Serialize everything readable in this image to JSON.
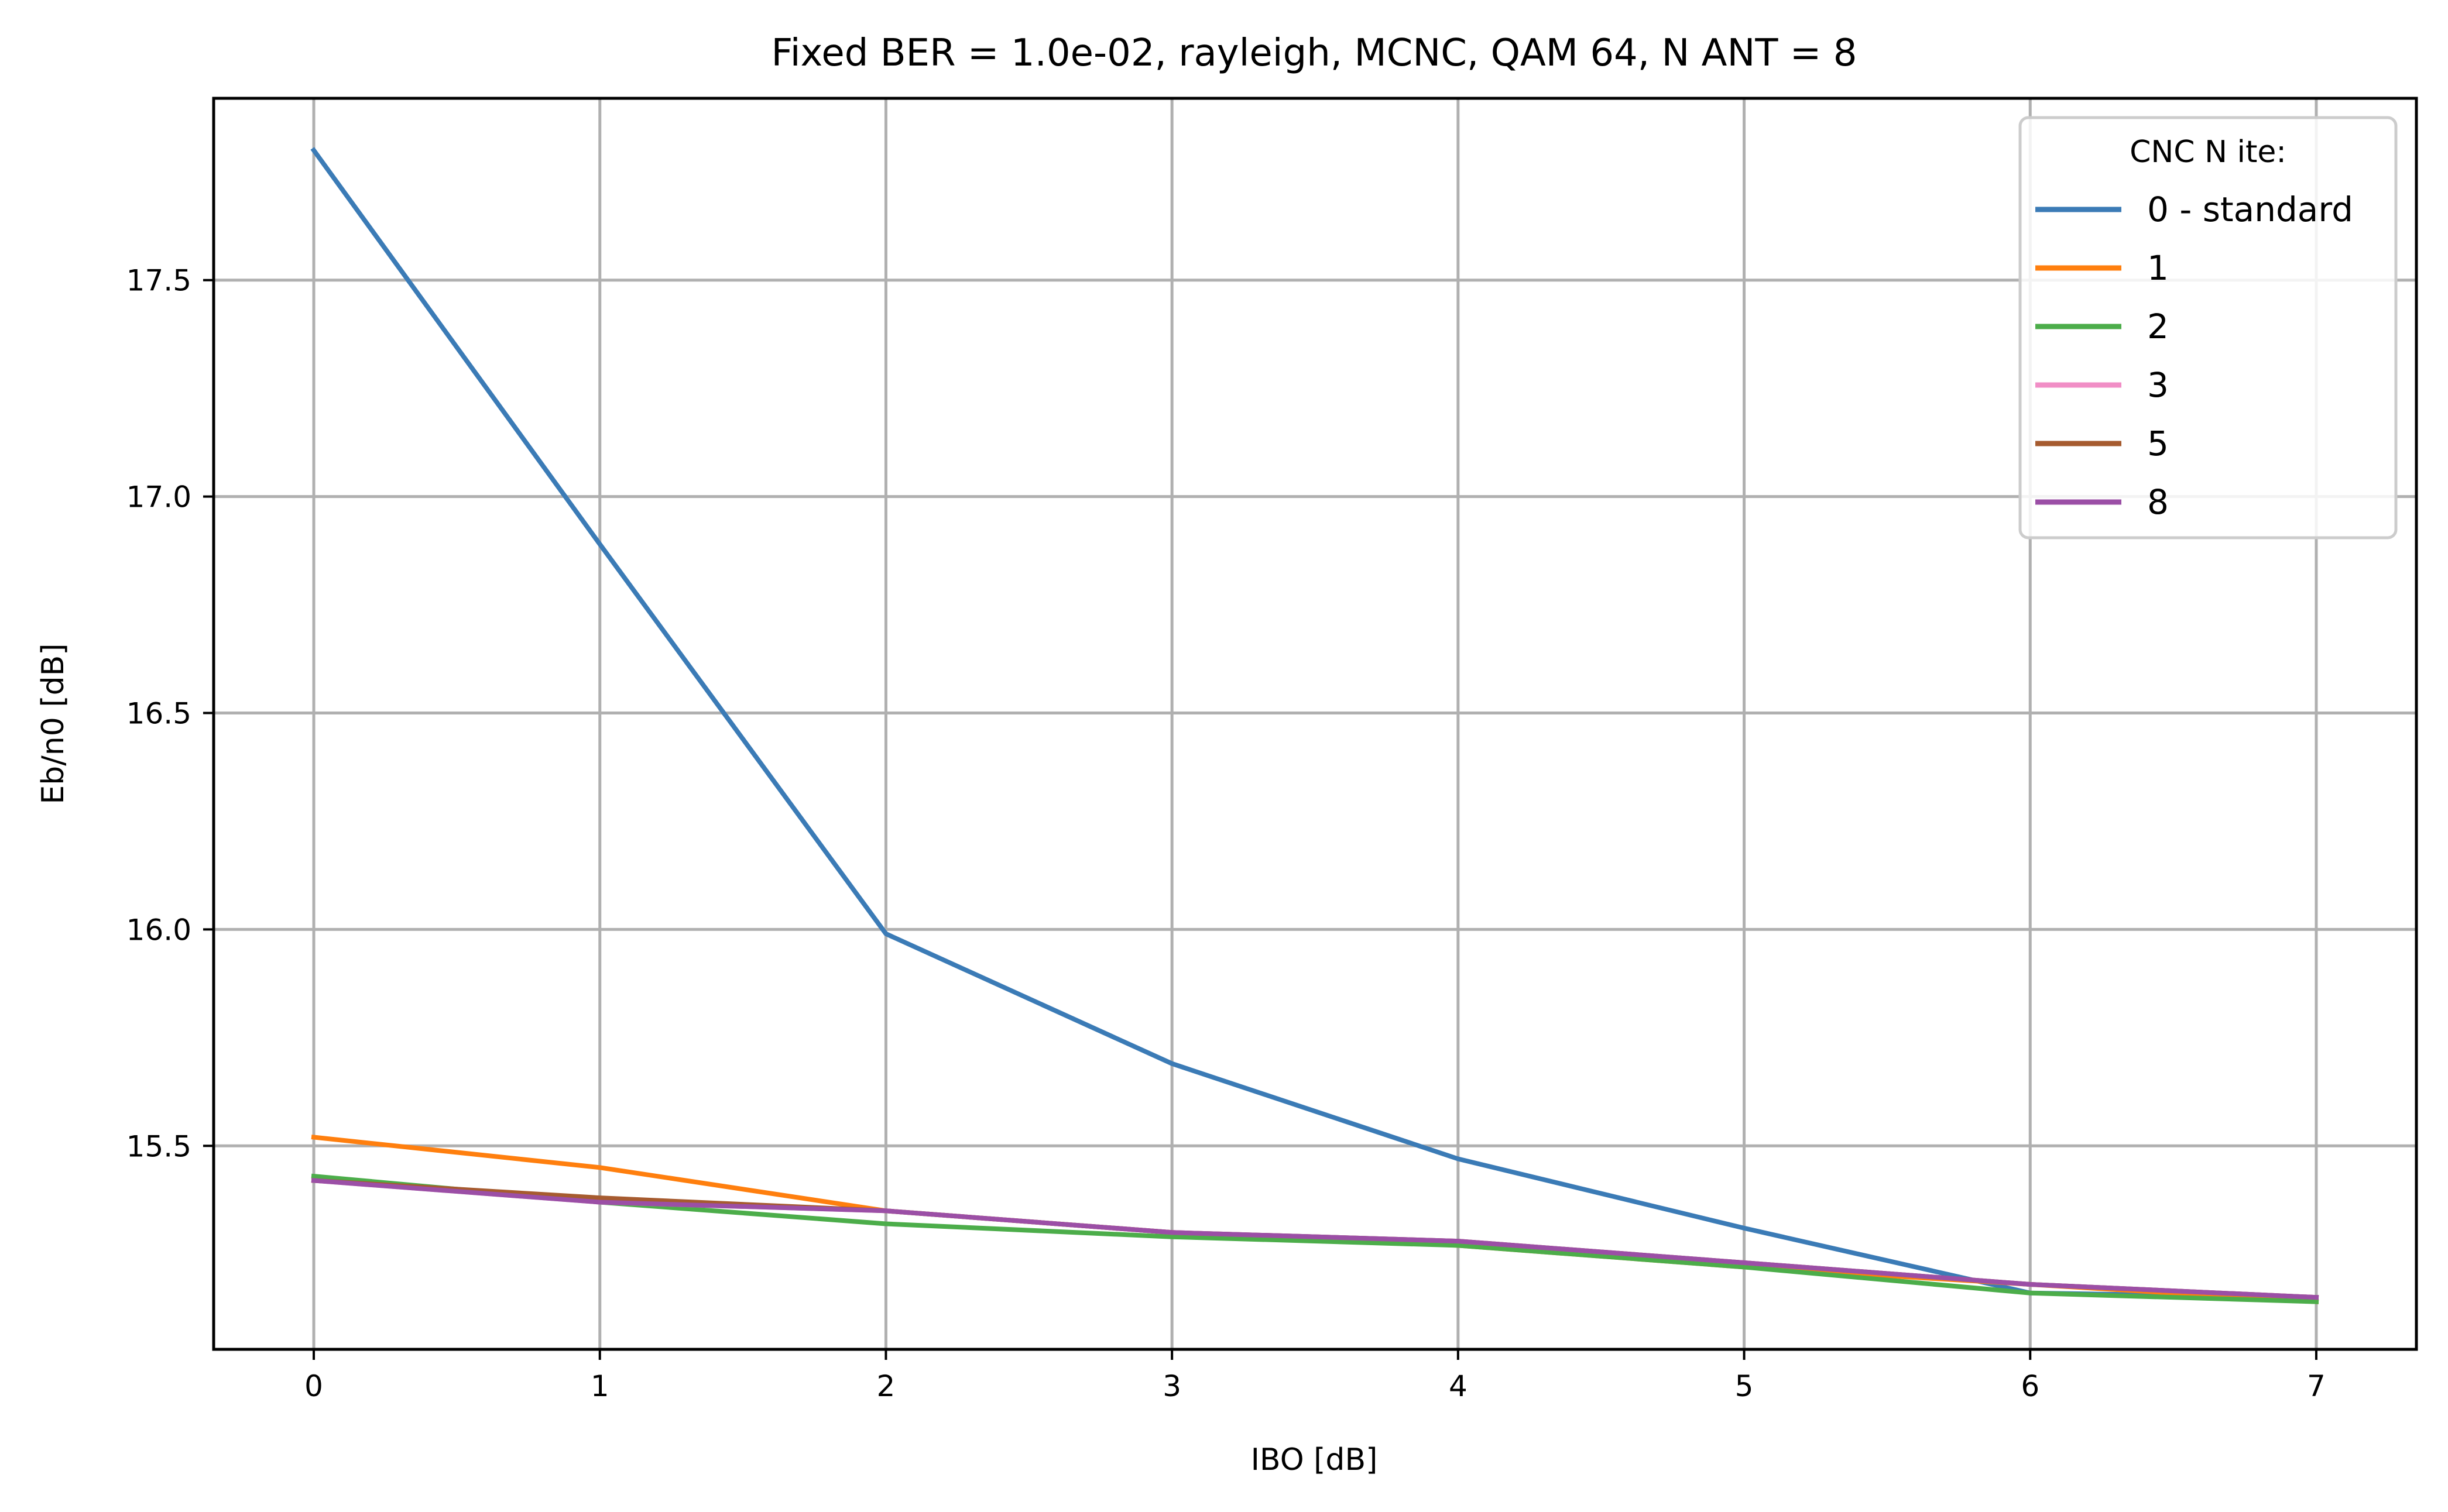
{
  "chart_data": {
    "type": "line",
    "title": "Fixed BER = 1.0e-02, rayleigh, MCNC, QAM 64, N ANT = 8",
    "xlabel": "IBO [dB]",
    "ylabel": "Eb/n0 [dB]",
    "x": [
      0,
      1,
      2,
      3,
      4,
      5,
      6,
      7
    ],
    "xlim": [
      -0.35,
      7.35
    ],
    "ylim": [
      15.03,
      17.92
    ],
    "xticks": [
      0,
      1,
      2,
      3,
      4,
      5,
      6,
      7
    ],
    "xtick_labels": [
      "0",
      "1",
      "2",
      "3",
      "4",
      "5",
      "6",
      "7"
    ],
    "yticks": [
      15.5,
      16.0,
      16.5,
      17.0,
      17.5
    ],
    "ytick_labels": [
      "15.5",
      "16.0",
      "16.5",
      "17.0",
      "17.5"
    ],
    "grid": true,
    "legend": {
      "title": "CNC N ite:",
      "placement": "top-right"
    },
    "series": [
      {
        "name": "0 - standard",
        "color": "#3b7bb6",
        "values": [
          17.8,
          16.89,
          15.99,
          15.69,
          15.47,
          15.31,
          15.16,
          15.15
        ]
      },
      {
        "name": "1",
        "color": "#ff7f0e",
        "values": [
          15.52,
          15.45,
          15.35,
          15.3,
          15.27,
          15.22,
          15.18,
          15.14
        ]
      },
      {
        "name": "2",
        "color": "#4cad4a",
        "values": [
          15.43,
          15.37,
          15.32,
          15.29,
          15.27,
          15.22,
          15.16,
          15.14
        ]
      },
      {
        "name": "3",
        "color": "#f18ec6",
        "values": [
          15.42,
          15.37,
          15.35,
          15.3,
          15.28,
          15.23,
          15.18,
          15.15
        ]
      },
      {
        "name": "5",
        "color": "#a65b2f",
        "values": [
          15.42,
          15.38,
          15.35,
          15.3,
          15.28,
          15.23,
          15.18,
          15.15
        ]
      },
      {
        "name": "8",
        "color": "#9b4fa6",
        "values": [
          15.42,
          15.37,
          15.35,
          15.3,
          15.28,
          15.23,
          15.18,
          15.15
        ]
      }
    ]
  }
}
